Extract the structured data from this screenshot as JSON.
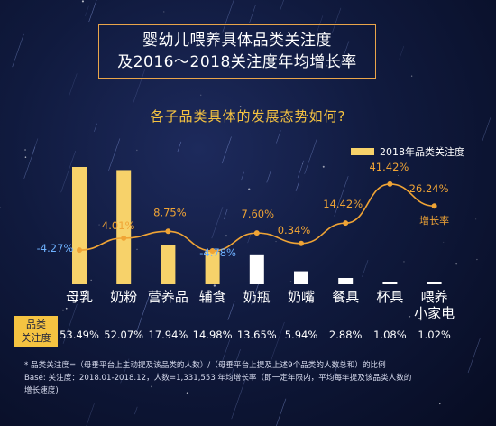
{
  "title_lines": [
    "婴幼儿喂养具体品类关注度",
    "及2016～2018关注度年均增长率"
  ],
  "subtitle": "各子品类具体的发展态势如何?",
  "row_label_lines": [
    "品类",
    "关注度"
  ],
  "footnotes": {
    "line1": "* 品类关注度=（母垂平台上主动提及该品类的人数）/（母垂平台上提及上述9个品类的人数总和）的比例",
    "line2": "Base: 关注度：2018.01-2018.12，人数=1,331,553      年均增长率（即一定年限内，平均每年提及该品类人数的",
    "line3": "增长速度)"
  },
  "colors": {
    "bar_primary": "#f7d26a",
    "bar_secondary": "#ffffff",
    "line": "#f0a435",
    "growth_label": "#f0a435",
    "growth_label_negative": "#6fb2ff",
    "accent": "#f5c341"
  },
  "chart_data": {
    "type": "bar",
    "categories": [
      "母乳",
      "奶粉",
      "营养品",
      "辅食",
      "奶瓶",
      "奶嘴",
      "餐具",
      "杯具",
      "喂养小家电"
    ],
    "category_lines": [
      [
        "母乳"
      ],
      [
        "奶粉"
      ],
      [
        "营养品"
      ],
      [
        "辅食"
      ],
      [
        "奶瓶"
      ],
      [
        "奶嘴"
      ],
      [
        "餐具"
      ],
      [
        "杯具"
      ],
      [
        "喂养",
        "小家电"
      ]
    ],
    "series": [
      {
        "name": "2018年品类关注度",
        "type": "bar",
        "values": [
          53.49,
          52.07,
          17.94,
          14.98,
          13.65,
          5.94,
          2.88,
          1.08,
          1.02
        ],
        "labels": [
          "53.49%",
          "52.07%",
          "17.94%",
          "14.98%",
          "13.65%",
          "5.94%",
          "2.88%",
          "1.08%",
          "1.02%"
        ],
        "bar_colors": [
          "#f7d26a",
          "#f7d26a",
          "#f7d26a",
          "#f7d26a",
          "#ffffff",
          "#ffffff",
          "#ffffff",
          "#ffffff",
          "#ffffff"
        ]
      },
      {
        "name": "增长率",
        "type": "line",
        "values": [
          -4.27,
          4.01,
          8.75,
          -4.78,
          7.6,
          0.34,
          14.42,
          41.42,
          26.24
        ],
        "labels": [
          "-4.27%",
          "4.01%",
          "8.75%",
          "-4.78%",
          "7.60%",
          "0.34%",
          "14.42%",
          "41.42%",
          "26.24%"
        ]
      }
    ],
    "legend": "top-right",
    "grid": false
  }
}
